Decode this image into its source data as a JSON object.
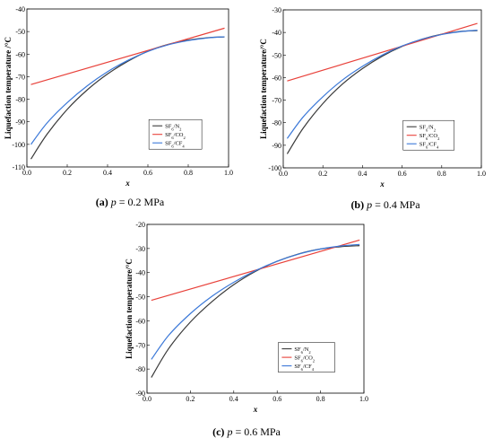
{
  "colors": {
    "sf6_n2": "#3a3a3a",
    "sf6_co2": "#e8413a",
    "sf6_cf4": "#3b78d8"
  },
  "chart_data": [
    {
      "id": "a",
      "type": "line",
      "caption": {
        "letter": "(a)",
        "var": "p",
        "text": " = 0.2 MPa"
      },
      "xlabel": "x",
      "ylabel": "Liquefaction temperature /°C",
      "xlim": [
        0,
        1.0
      ],
      "ylim": [
        -110,
        -40
      ],
      "xticks": [
        0.0,
        0.2,
        0.4,
        0.6,
        0.8,
        1.0
      ],
      "xtick_labels": [
        "0.0",
        "0.2",
        "0.4",
        "0.6",
        "0.8",
        "1.0"
      ],
      "yticks": [
        -110,
        -100,
        -90,
        -80,
        -70,
        -60,
        -50,
        -40
      ],
      "ytick_labels": [
        "-110",
        "-100",
        "-90",
        "-80",
        "-70",
        "-60",
        "-50",
        "-40"
      ],
      "legend_position": "lower-right",
      "series": [
        {
          "name": "SF6/N2",
          "legend_main": "SF",
          "legend_sub6": "6",
          "legend_gas": "/N",
          "legend_sub": "2",
          "color_key": "sf6_n2",
          "x": [
            0.02,
            0.1,
            0.2,
            0.3,
            0.4,
            0.5,
            0.6,
            0.7,
            0.8,
            0.9,
            0.98
          ],
          "y": [
            -106.5,
            -95.5,
            -84.5,
            -75.8,
            -68.8,
            -63.2,
            -58.7,
            -55.7,
            -53.8,
            -52.7,
            -52.4
          ]
        },
        {
          "name": "SF6/CO2",
          "legend_main": "SF",
          "legend_sub6": "6",
          "legend_gas": "/CO",
          "legend_sub": "2",
          "color_key": "sf6_co2",
          "x": [
            0.02,
            0.98
          ],
          "y": [
            -73.5,
            -48.5
          ]
        },
        {
          "name": "SF6/CF4",
          "legend_main": "SF",
          "legend_sub6": "6",
          "legend_gas": "/CF",
          "legend_sub": "4",
          "color_key": "sf6_cf4",
          "x": [
            0.02,
            0.1,
            0.2,
            0.3,
            0.4,
            0.5,
            0.6,
            0.7,
            0.8,
            0.9,
            0.98
          ],
          "y": [
            -100.0,
            -90.5,
            -81.5,
            -74.0,
            -67.8,
            -62.8,
            -58.8,
            -55.9,
            -54.0,
            -52.8,
            -52.3
          ]
        }
      ]
    },
    {
      "id": "b",
      "type": "line",
      "caption": {
        "letter": "(b)",
        "var": "p",
        "text": " = 0.4 MPa"
      },
      "xlabel": "x",
      "ylabel": "Liquefaction temperature/°C",
      "xlim": [
        0,
        1.0
      ],
      "ylim": [
        -100,
        -30
      ],
      "xticks": [
        0.0,
        0.2,
        0.4,
        0.6,
        0.8,
        1.0
      ],
      "xtick_labels": [
        "0.0",
        "0.2",
        "0.4",
        "0.6",
        "0.8",
        "1.0"
      ],
      "yticks": [
        -100,
        -90,
        -80,
        -70,
        -60,
        -50,
        -40,
        -30
      ],
      "ytick_labels": [
        "-100",
        "-90",
        "-80",
        "-70",
        "-60",
        "-50",
        "-40",
        "-30"
      ],
      "legend_position": "lower-right",
      "series": [
        {
          "name": "SF6/N2",
          "legend_main": "SF",
          "legend_sub6": "6",
          "legend_gas": "/N",
          "legend_sub": "2",
          "color_key": "sf6_n2",
          "x": [
            0.02,
            0.1,
            0.2,
            0.3,
            0.4,
            0.5,
            0.6,
            0.7,
            0.8,
            0.9,
            0.98
          ],
          "y": [
            -93.8,
            -82.5,
            -71.5,
            -62.8,
            -56.0,
            -50.5,
            -46.2,
            -43.0,
            -40.8,
            -39.5,
            -39.2
          ]
        },
        {
          "name": "SF6/CO2",
          "legend_main": "SF",
          "legend_sub6": "6",
          "legend_gas": "/CO",
          "legend_sub": "2",
          "color_key": "sf6_co2",
          "x": [
            0.02,
            0.98
          ],
          "y": [
            -61.5,
            -36.0
          ]
        },
        {
          "name": "SF6/CF4",
          "legend_main": "SF",
          "legend_sub6": "6",
          "legend_gas": "/CF",
          "legend_sub": "4",
          "color_key": "sf6_cf4",
          "x": [
            0.02,
            0.1,
            0.2,
            0.3,
            0.4,
            0.5,
            0.6,
            0.7,
            0.8,
            0.9,
            0.98
          ],
          "y": [
            -87.0,
            -77.5,
            -68.5,
            -61.0,
            -55.0,
            -50.0,
            -46.0,
            -43.0,
            -40.9,
            -39.6,
            -39.0
          ]
        }
      ]
    },
    {
      "id": "c",
      "type": "line",
      "caption": {
        "letter": "(c)",
        "var": "p",
        "text": " = 0.6 MPa"
      },
      "xlabel": "x",
      "ylabel": "Liquefaction temperature/°C",
      "xlim": [
        0,
        1.0
      ],
      "ylim": [
        -90,
        -20
      ],
      "xticks": [
        0.0,
        0.2,
        0.4,
        0.6,
        0.8,
        1.0
      ],
      "xtick_labels": [
        "0.0",
        "0.2",
        "0.4",
        "0.6",
        "0.8",
        "1.0"
      ],
      "yticks": [
        -90,
        -80,
        -70,
        -60,
        -50,
        -40,
        -30,
        -20
      ],
      "ytick_labels": [
        "-90",
        "-80",
        "-70",
        "-60",
        "-50",
        "-40",
        "-30",
        "-20"
      ],
      "legend_position": "lower-right",
      "series": [
        {
          "name": "SF6/N2",
          "legend_main": "SF",
          "legend_sub6": "6",
          "legend_gas": "/N",
          "legend_sub": "2",
          "color_key": "sf6_n2",
          "x": [
            0.02,
            0.1,
            0.2,
            0.3,
            0.4,
            0.5,
            0.6,
            0.7,
            0.8,
            0.9,
            0.98
          ],
          "y": [
            -83.5,
            -71.5,
            -60.5,
            -52.0,
            -45.0,
            -39.5,
            -35.3,
            -32.2,
            -30.2,
            -29.2,
            -28.8
          ]
        },
        {
          "name": "SF6/CO2",
          "legend_main": "SF",
          "legend_sub6": "6",
          "legend_gas": "/CO",
          "legend_sub": "2",
          "color_key": "sf6_co2",
          "x": [
            0.02,
            0.98
          ],
          "y": [
            -51.5,
            -26.5
          ]
        },
        {
          "name": "SF6/CF4",
          "legend_main": "SF",
          "legend_sub6": "6",
          "legend_gas": "/CF",
          "legend_sub": "4",
          "color_key": "sf6_cf4",
          "x": [
            0.02,
            0.1,
            0.2,
            0.3,
            0.4,
            0.5,
            0.6,
            0.7,
            0.8,
            0.9,
            0.98
          ],
          "y": [
            -76.0,
            -66.0,
            -57.0,
            -49.8,
            -44.0,
            -39.2,
            -35.3,
            -32.3,
            -30.2,
            -28.9,
            -28.3
          ]
        }
      ]
    }
  ]
}
